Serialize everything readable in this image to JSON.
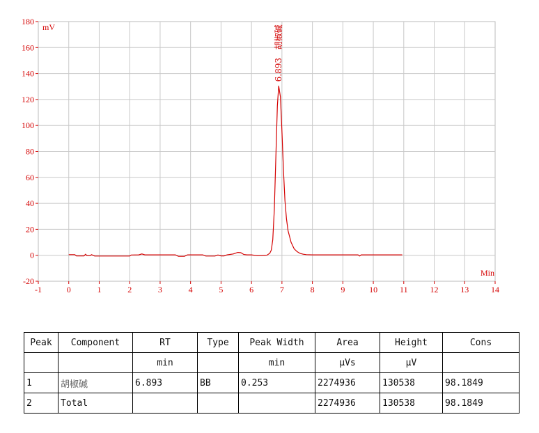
{
  "colors": {
    "trace": "#d40000",
    "axis_text": "#d40000",
    "grid": "#c8c8c8",
    "frame": "#bbbbbb"
  },
  "chart_data": {
    "type": "line",
    "x_unit": "Min",
    "y_unit": "mV",
    "xlim": [
      -1,
      14
    ],
    "ylim": [
      -20,
      180
    ],
    "x_ticks": [
      -1,
      0,
      1,
      2,
      3,
      4,
      5,
      6,
      7,
      8,
      9,
      10,
      11,
      12,
      13,
      14
    ],
    "y_ticks": [
      -20,
      0,
      20,
      40,
      60,
      80,
      100,
      120,
      140,
      160,
      180
    ],
    "x_tick_labels": [
      "-1",
      "0",
      "1",
      "2",
      "3",
      "4",
      "5",
      "6",
      "7",
      "8",
      "9",
      "10",
      "11",
      "12",
      "13",
      "14"
    ],
    "y_tick_labels": [
      "-20",
      "0",
      "20",
      "40",
      "60",
      "80",
      "100",
      "120",
      "140",
      "160",
      "180"
    ],
    "grid": true,
    "peak_annotation": {
      "rt_label": "6.893",
      "name": "胡椒碱",
      "x": 6.893,
      "y": 130.5
    },
    "series": [
      {
        "x": [
          0.0,
          0.2,
          0.25,
          0.5,
          0.55,
          0.6,
          0.7,
          0.75,
          0.85,
          0.9,
          1.5,
          2.0,
          2.05,
          2.3,
          2.4,
          2.5,
          3.0,
          3.5,
          3.6,
          3.8,
          3.9,
          4.0,
          4.4,
          4.5,
          4.8,
          4.9,
          5.0,
          5.1,
          5.2,
          5.4,
          5.55,
          5.65,
          5.75,
          5.85,
          6.0,
          6.2,
          6.5,
          6.6,
          6.65,
          6.7,
          6.75,
          6.8,
          6.85,
          6.893,
          6.95,
          7.0,
          7.05,
          7.1,
          7.15,
          7.2,
          7.3,
          7.4,
          7.5,
          7.6,
          7.7,
          7.8,
          8.0,
          8.5,
          9.0,
          9.5,
          9.55,
          9.6,
          10.0,
          10.5,
          10.95
        ],
        "y": [
          0.5,
          0.5,
          -0.5,
          -0.5,
          0.8,
          -0.3,
          -0.3,
          0.5,
          -0.6,
          -0.6,
          -0.6,
          -0.6,
          0.2,
          0.3,
          1.0,
          0.3,
          0.3,
          0.3,
          -0.8,
          -0.8,
          0.3,
          0.3,
          0.3,
          -0.6,
          -0.6,
          0.2,
          -0.5,
          -0.5,
          0.3,
          1.0,
          2.2,
          2.0,
          0.6,
          0.3,
          0.3,
          -0.3,
          0.0,
          1.5,
          4.0,
          12.0,
          35.0,
          75.0,
          115.0,
          130.5,
          122.0,
          95.0,
          65.0,
          42.0,
          28.0,
          19.0,
          10.0,
          5.0,
          2.8,
          1.4,
          0.8,
          0.5,
          0.3,
          0.3,
          0.3,
          0.3,
          -0.6,
          0.3,
          0.3,
          0.3,
          0.3
        ]
      }
    ]
  },
  "table": {
    "header": [
      "Peak",
      "Component",
      "RT",
      "Type",
      "Peak Width",
      "Area",
      "Height",
      "Cons"
    ],
    "units": [
      "",
      "",
      "min",
      "",
      "min",
      "μVs",
      "μV",
      ""
    ],
    "rows": [
      [
        "1",
        "胡椒碱",
        "6.893",
        "BB",
        "0.253",
        "2274936",
        "130538",
        "98.1849"
      ],
      [
        "2",
        "Total",
        "",
        "",
        "",
        "2274936",
        "130538",
        "98.1849"
      ]
    ]
  }
}
